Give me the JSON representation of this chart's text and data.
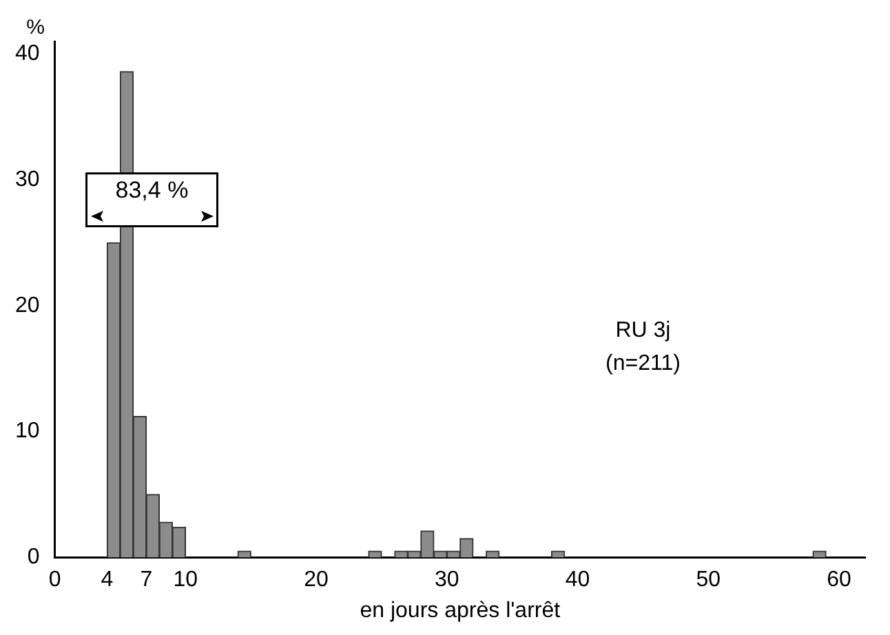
{
  "chart_data": {
    "type": "histogram",
    "ylabel": "%",
    "xlabel": "en jours après l'arrêt",
    "bins": [
      4,
      5,
      6,
      7,
      8,
      9,
      10,
      11,
      12,
      13,
      14,
      15,
      16,
      17,
      18,
      19,
      20,
      21,
      22,
      23,
      24,
      25,
      26,
      27,
      28,
      29,
      30,
      31,
      32,
      33,
      34,
      35,
      36,
      37,
      38,
      39,
      40,
      41,
      42,
      43,
      44,
      45,
      46,
      47,
      48,
      49,
      50,
      51,
      52,
      53,
      54,
      55,
      56,
      57,
      58,
      59
    ],
    "values": [
      25,
      38.6,
      11.2,
      5,
      2.8,
      2.4,
      0,
      0,
      0,
      0,
      0.5,
      0,
      0,
      0,
      0,
      0,
      0,
      0,
      0,
      0,
      0.5,
      0,
      0.5,
      0.5,
      2.1,
      0.5,
      0.5,
      1.5,
      0,
      0.5,
      0,
      0,
      0,
      0,
      0.5,
      0,
      0,
      0,
      0,
      0,
      0,
      0,
      0,
      0,
      0,
      0,
      0,
      0,
      0,
      0,
      0,
      0,
      0,
      0,
      0.5
    ],
    "color": "#8c8c8c",
    "xlim": [
      0,
      62
    ],
    "xticks": [
      0,
      4,
      7,
      10,
      20,
      30,
      40,
      50,
      60
    ],
    "ylim": [
      0,
      41
    ],
    "yticks": [
      0,
      10,
      20,
      30,
      40
    ],
    "grid": false,
    "legend": false,
    "annotations": [
      "83,4 %",
      "RU 3j",
      "(n=211)"
    ]
  }
}
